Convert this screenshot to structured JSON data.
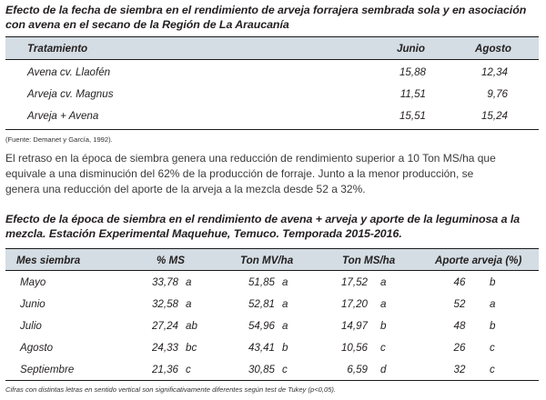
{
  "table1": {
    "title": "Efecto de la fecha de siembra en el rendimiento de arveja forrajera sembrada sola y en asociación con avena en el secano de la Región de La Araucanía",
    "headers": [
      "Tratamiento",
      "Junio",
      "Agosto"
    ],
    "rows": [
      {
        "treatment": "Avena cv. Llaofén",
        "junio": "15,88",
        "agosto": "12,34"
      },
      {
        "treatment": "Arveja cv. Magnus",
        "junio": "11,51",
        "agosto": "9,76"
      },
      {
        "treatment": "Arveja + Avena",
        "junio": "15,51",
        "agosto": "15,24"
      }
    ],
    "source": "(Fuente: Demanet y García, 1992)."
  },
  "paragraph": {
    "lines": [
      "El retraso en la época de siembra genera una reducción de rendimiento superior a 10 Ton MS/ha que",
      "equivale a una disminución del 62% de la producción de forraje. Junto a la menor producción, se",
      "genera una reducción del aporte de la arveja a la mezcla desde 52 a 32%."
    ]
  },
  "table2": {
    "title": "Efecto de la época de siembra en el rendimiento de avena + arveja y aporte de la leguminosa a la mezcla. Estación Experimental Maquehue, Temuco. Temporada 2015-2016.",
    "headers": [
      "Mes siembra",
      "% MS",
      "Ton MV/ha",
      "Ton MS/ha",
      "Aporte arveja (%)"
    ],
    "rows": [
      {
        "mes": "Mayo",
        "ms": "33,78",
        "ms_l": "a",
        "mv": "51,85",
        "mv_l": "a",
        "tms": "17,52",
        "tms_l": "a",
        "ap": "46",
        "ap_l": "b"
      },
      {
        "mes": "Junio",
        "ms": "32,58",
        "ms_l": "a",
        "mv": "52,81",
        "mv_l": "a",
        "tms": "17,20",
        "tms_l": "a",
        "ap": "52",
        "ap_l": "a"
      },
      {
        "mes": "Julio",
        "ms": "27,24",
        "ms_l": "ab",
        "mv": "54,96",
        "mv_l": "a",
        "tms": "14,97",
        "tms_l": "b",
        "ap": "48",
        "ap_l": "b"
      },
      {
        "mes": "Agosto",
        "ms": "24,33",
        "ms_l": "bc",
        "mv": "43,41",
        "mv_l": "b",
        "tms": "10,56",
        "tms_l": "c",
        "ap": "26",
        "ap_l": "c"
      },
      {
        "mes": "Septiembre",
        "ms": "21,36",
        "ms_l": "c",
        "mv": "30,85",
        "mv_l": "c",
        "tms": "6,59",
        "tms_l": "d",
        "ap": "32",
        "ap_l": "c"
      }
    ],
    "footnote": "Cifras con distintas letras en sentido vertical son significativamente diferentes según test de Tukey (p<0,05)."
  }
}
